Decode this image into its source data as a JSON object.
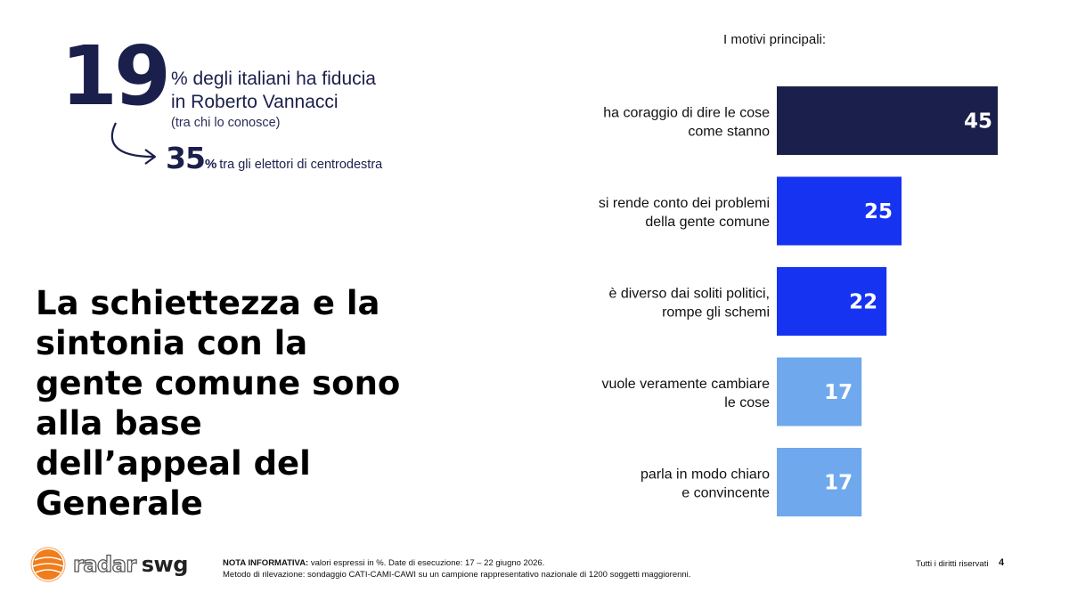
{
  "stat": {
    "number": "19",
    "line1": "% degli italiani ha fiducia",
    "line2": "in Roberto Vannacci",
    "note": "(tra chi lo conosce)"
  },
  "sub_stat": {
    "number": "35",
    "pct": "%",
    "text": "tra gli elettori di centrodestra"
  },
  "headline": "La schiettezza e la sintonia con la gente comune sono alla base dell’appeal del Generale",
  "chart_heading": "I motivi principali:",
  "chart_data": {
    "type": "bar",
    "orientation": "horizontal",
    "categories": [
      [
        "ha coraggio di dire le cose",
        "come stanno"
      ],
      [
        "si rende conto dei problemi",
        "della gente comune"
      ],
      [
        "è diverso dai soliti politici,",
        "rompe gli schemi"
      ],
      [
        "vuole veramente cambiare",
        "le cose"
      ],
      [
        "parla in modo chiaro",
        "e convincente"
      ]
    ],
    "values": [
      45,
      25,
      22,
      17,
      17
    ],
    "colors": [
      "#1b1f4b",
      "#1633f2",
      "#1633f2",
      "#6fa8ec",
      "#6fa8ec"
    ],
    "unit": "%"
  },
  "footer": {
    "logo_radar": "radar",
    "logo_swg": "swg",
    "note_label": "NOTA INFORMATIVA:",
    "note_text": " valori espressi in %. Date di esecuzione: 17 – 22 giugno 2026.",
    "method": "Metodo di rilevazione: sondaggio CATI-CAMI-CAWI su un campione rappresentativo nazionale di 1200 soggetti maggiorenni.",
    "rights": "Tutti i diritti riservati",
    "page": "4"
  }
}
